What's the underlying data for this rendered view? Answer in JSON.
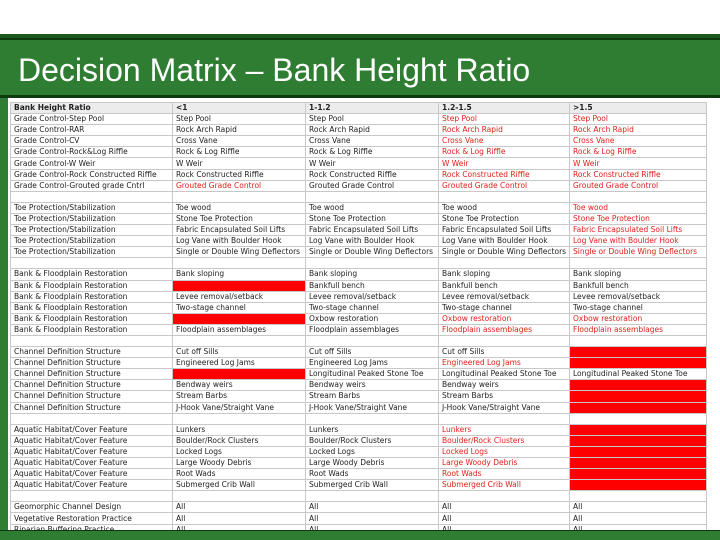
{
  "slide": {
    "title": "Decision Matrix – Bank Height Ratio",
    "colors": {
      "title_bar": "#2e7d32",
      "highlight_text": "#e0201b",
      "highlight_fill": "#ff0000"
    }
  },
  "table": {
    "headers": [
      "Bank Height Ratio",
      "<1",
      "1-1.2",
      "1.2-1.5",
      ">1.5"
    ],
    "rows": [
      {
        "cells": [
          "Grade Control-Step Pool",
          "Step Pool",
          "Step Pool",
          "Step Pool",
          "Step Pool"
        ],
        "styles": [
          "",
          "",
          "",
          "red-text",
          "red-text"
        ]
      },
      {
        "cells": [
          "Grade Control-RAR",
          "Rock Arch Rapid",
          "Rock Arch Rapid",
          "Rock Arch Rapid",
          "Rock Arch Rapid"
        ],
        "styles": [
          "",
          "",
          "",
          "red-text",
          "red-text"
        ]
      },
      {
        "cells": [
          "Grade Control-CV",
          "Cross Vane",
          "Cross Vane",
          "Cross Vane",
          "Cross Vane"
        ],
        "styles": [
          "",
          "",
          "",
          "red-text",
          "red-text"
        ]
      },
      {
        "cells": [
          "Grade Control-Rock&Log Riffle",
          "Rock & Log Riffle",
          "Rock & Log Riffle",
          "Rock & Log Riffle",
          "Rock & Log Riffle"
        ],
        "styles": [
          "",
          "",
          "",
          "red-text",
          "red-text"
        ]
      },
      {
        "cells": [
          "Grade Control-W Weir",
          "W Weir",
          "W Weir",
          "W Weir",
          "W Weir"
        ],
        "styles": [
          "",
          "",
          "",
          "red-text",
          "red-text"
        ]
      },
      {
        "cells": [
          "Grade Control-Rock Constructed Riffle",
          "Rock Constructed Riffle",
          "Rock Constructed Riffle",
          "Rock Constructed Riffle",
          "Rock Constructed Riffle"
        ],
        "styles": [
          "",
          "",
          "",
          "red-text",
          "red-text"
        ]
      },
      {
        "cells": [
          "Grade Control-Grouted grade Cntrl",
          "Grouted Grade Control",
          "Grouted Grade Control",
          "Grouted Grade Control",
          "Grouted Grade Control"
        ],
        "styles": [
          "",
          "red-text",
          "",
          "red-text",
          "red-text"
        ]
      },
      {
        "gap": true
      },
      {
        "cells": [
          "Toe Protection/Stabilization",
          "Toe wood",
          "Toe wood",
          "Toe wood",
          "Toe wood"
        ],
        "styles": [
          "",
          "",
          "",
          "",
          "red-text"
        ]
      },
      {
        "cells": [
          "Toe Protection/Stabilization",
          "Stone Toe Protection",
          "Stone Toe Protection",
          "Stone Toe Protection",
          "Stone Toe Protection"
        ],
        "styles": [
          "",
          "",
          "",
          "",
          "red-text"
        ]
      },
      {
        "cells": [
          "Toe Protection/Stabilization",
          "Fabric Encapsulated Soil Lifts",
          "Fabric Encapsulated Soil Lifts",
          "Fabric Encapsulated Soil Lifts",
          "Fabric Encapsulated Soil Lifts"
        ],
        "styles": [
          "",
          "",
          "",
          "",
          "red-text"
        ]
      },
      {
        "cells": [
          "Toe Protection/Stabilization",
          "Log Vane with Boulder Hook",
          "Log Vane with Boulder Hook",
          "Log Vane with Boulder Hook",
          "Log Vane with Boulder Hook"
        ],
        "styles": [
          "",
          "",
          "",
          "",
          "red-text"
        ]
      },
      {
        "cells": [
          "Toe Protection/Stabilization",
          "Single or Double Wing Deflectors",
          "Single or Double Wing Deflectors",
          "Single or Double Wing Deflectors",
          "Single or Double Wing Deflectors"
        ],
        "styles": [
          "",
          "",
          "",
          "",
          "red-text"
        ]
      },
      {
        "gap": true
      },
      {
        "cells": [
          "Bank & Floodplain Restoration",
          "Bank sloping",
          "Bank sloping",
          "Bank sloping",
          "Bank sloping"
        ],
        "styles": [
          "",
          "",
          "",
          "",
          ""
        ]
      },
      {
        "cells": [
          "Bank & Floodplain Restoration",
          "",
          "Bankfull bench",
          "Bankfull bench",
          "Bankfull bench"
        ],
        "styles": [
          "",
          "red-fill",
          "",
          "",
          ""
        ]
      },
      {
        "cells": [
          "Bank & Floodplain Restoration",
          "Levee removal/setback",
          "Levee removal/setback",
          "Levee removal/setback",
          "Levee removal/setback"
        ],
        "styles": [
          "",
          "",
          "",
          "",
          ""
        ]
      },
      {
        "cells": [
          "Bank & Floodplain Restoration",
          "Two-stage channel",
          "Two-stage channel",
          "Two-stage channel",
          "Two-stage channel"
        ],
        "styles": [
          "",
          "",
          "",
          "",
          ""
        ]
      },
      {
        "cells": [
          "Bank & Floodplain Restoration",
          "",
          "Oxbow restoration",
          "Oxbow restoration",
          "Oxbow restoration"
        ],
        "styles": [
          "",
          "red-fill",
          "",
          "red-text",
          "red-text"
        ]
      },
      {
        "cells": [
          "Bank & Floodplain Restoration",
          "Floodplain assemblages",
          "Floodplain assemblages",
          "Floodplain assemblages",
          "Floodplain assemblages"
        ],
        "styles": [
          "",
          "",
          "",
          "red-text",
          "red-text"
        ]
      },
      {
        "gap": true
      },
      {
        "cells": [
          "Channel Definition Structure",
          "Cut off Sills",
          "Cut off Sills",
          "Cut off Sills",
          ""
        ],
        "styles": [
          "",
          "",
          "",
          "",
          "red-fill"
        ]
      },
      {
        "cells": [
          "Channel Definition Structure",
          "Engineered Log Jams",
          "Engineered Log Jams",
          "Engineered Log Jams",
          ""
        ],
        "styles": [
          "",
          "",
          "",
          "red-text",
          "red-fill"
        ]
      },
      {
        "cells": [
          "Channel Definition Structure",
          "",
          "Longitudinal Peaked Stone Toe",
          "Longitudinal Peaked Stone Toe",
          "Longitudinal Peaked Stone Toe"
        ],
        "styles": [
          "",
          "red-fill",
          "",
          "",
          ""
        ]
      },
      {
        "cells": [
          "Channel Definition Structure",
          "Bendway weirs",
          "Bendway weirs",
          "Bendway weirs",
          ""
        ],
        "styles": [
          "",
          "",
          "",
          "",
          "red-fill"
        ]
      },
      {
        "cells": [
          "Channel Definition Structure",
          "Stream Barbs",
          "Stream Barbs",
          "Stream Barbs",
          ""
        ],
        "styles": [
          "",
          "",
          "",
          "",
          "red-fill"
        ]
      },
      {
        "cells": [
          "Channel Definition Structure",
          "J-Hook Vane/Straight Vane",
          "J-Hook Vane/Straight Vane",
          "J-Hook Vane/Straight Vane",
          ""
        ],
        "styles": [
          "",
          "",
          "",
          "",
          "red-fill"
        ]
      },
      {
        "gap": true
      },
      {
        "cells": [
          "Aquatic Habitat/Cover Feature",
          "Lunkers",
          "Lunkers",
          "Lunkers",
          ""
        ],
        "styles": [
          "",
          "",
          "",
          "red-text",
          "red-fill"
        ]
      },
      {
        "cells": [
          "Aquatic Habitat/Cover Feature",
          "Boulder/Rock Clusters",
          "Boulder/Rock Clusters",
          "Boulder/Rock Clusters",
          ""
        ],
        "styles": [
          "",
          "",
          "",
          "red-text",
          "red-fill"
        ]
      },
      {
        "cells": [
          "Aquatic Habitat/Cover Feature",
          "Locked Logs",
          "Locked Logs",
          "Locked Logs",
          ""
        ],
        "styles": [
          "",
          "",
          "",
          "red-text",
          "red-fill"
        ]
      },
      {
        "cells": [
          "Aquatic Habitat/Cover Feature",
          "Large Woody Debris",
          "Large Woody Debris",
          "Large Woody Debris",
          ""
        ],
        "styles": [
          "",
          "",
          "",
          "red-text",
          "red-fill"
        ]
      },
      {
        "cells": [
          "Aquatic Habitat/Cover Feature",
          "Root Wads",
          "Root Wads",
          "Root Wads",
          ""
        ],
        "styles": [
          "",
          "",
          "",
          "red-text",
          "red-fill"
        ]
      },
      {
        "cells": [
          "Aquatic Habitat/Cover Feature",
          "Submerged Crib Wall",
          "Submerged Crib Wall",
          "Submerged Crib Wall",
          ""
        ],
        "styles": [
          "",
          "",
          "",
          "red-text",
          "red-fill"
        ]
      },
      {
        "gap": true
      },
      {
        "cells": [
          "Geomorphic Channel Design",
          "All",
          "All",
          "All",
          "All"
        ],
        "styles": [
          "",
          "",
          "",
          "",
          ""
        ]
      },
      {
        "cells": [
          "Vegetative Restoration Practice",
          "All",
          "All",
          "All",
          "All"
        ],
        "styles": [
          "",
          "",
          "",
          "",
          ""
        ]
      },
      {
        "cells": [
          "Riparian Buffering Practice",
          "All",
          "All",
          "All",
          "All"
        ],
        "styles": [
          "",
          "",
          "",
          "",
          ""
        ]
      }
    ]
  }
}
